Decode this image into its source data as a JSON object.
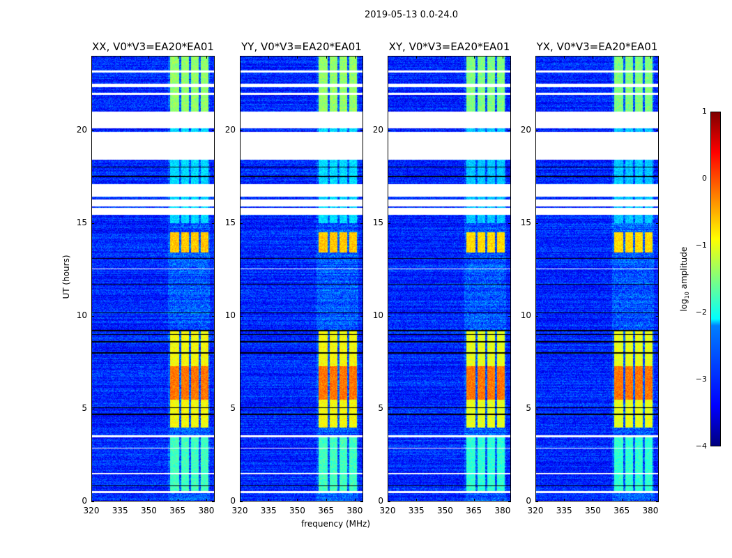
{
  "chart_data": {
    "type": "heatmap",
    "title": "2019-05-13 0.0-24.0",
    "xlabel": "frequency (MHz)",
    "ylabel": "UT (hours)",
    "xlim": [
      320,
      384.4
    ],
    "ylim": [
      0,
      24
    ],
    "xticks": [
      "320",
      "335",
      "350",
      "365",
      "380"
    ],
    "xtick_values": [
      320,
      335,
      350,
      365,
      380
    ],
    "yticks": [
      "0",
      "5",
      "10",
      "15",
      "20"
    ],
    "ytick_values": [
      0,
      5,
      10,
      15,
      20
    ],
    "panels": [
      {
        "title": "XX, V0*V3=EA20*EA01"
      },
      {
        "title": "YY, V0*V3=EA20*EA01"
      },
      {
        "title": "XY, V0*V3=EA20*EA01"
      },
      {
        "title": "YX, V0*V3=EA20*EA01"
      }
    ],
    "colorbar": {
      "label_prefix": "log",
      "label_sub": "10",
      "label_suffix": " amplitude",
      "range": [
        -4,
        1
      ],
      "ticks": [
        "1",
        "0",
        "−1",
        "−2",
        "−3",
        "−4"
      ],
      "tick_values": [
        1,
        0,
        -1,
        -2,
        -3,
        -4
      ],
      "colormap": "jet"
    },
    "background_level": -3.2,
    "rfi_subbands_mhz": [
      [
        361,
        366
      ],
      [
        367,
        371
      ],
      [
        372,
        376
      ],
      [
        377,
        381
      ]
    ],
    "rfi_time_levels": [
      {
        "hours": [
          0.5,
          3.5
        ],
        "level": -1.8
      },
      {
        "hours": [
          4.0,
          9.2
        ],
        "level": -0.9
      },
      {
        "hours": [
          5.5,
          7.3
        ],
        "level": -0.2
      },
      {
        "hours": [
          13.4,
          14.5
        ],
        "level": -0.6
      },
      {
        "hours": [
          15.0,
          24.0
        ],
        "level": -2.3
      },
      {
        "hours": [
          21.0,
          24.0
        ],
        "level": -1.4
      }
    ],
    "flagged_hours": [
      [
        0.45,
        0.55
      ],
      [
        1.45,
        1.55
      ],
      [
        2.85,
        2.9
      ],
      [
        3.45,
        3.55
      ],
      [
        12.5,
        12.55
      ],
      [
        15.45,
        15.8
      ],
      [
        15.9,
        16.25
      ],
      [
        16.4,
        17.1
      ],
      [
        18.4,
        19.9
      ],
      [
        20.1,
        21.0
      ],
      [
        21.9,
        22.0
      ],
      [
        22.3,
        22.5
      ],
      [
        23.1,
        23.2
      ]
    ],
    "black_lines_hours": [
      0.85,
      4.7,
      5.05,
      8.0,
      8.6,
      9.0,
      9.2,
      10.15,
      11.7,
      13.1,
      17.5,
      18.0
    ]
  }
}
